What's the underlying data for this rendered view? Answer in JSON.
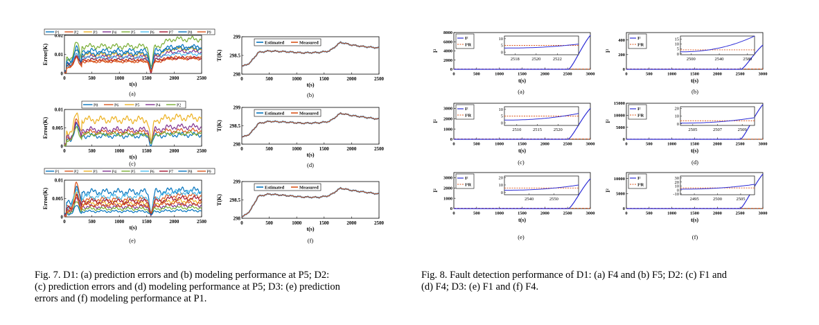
{
  "fig7": {
    "caption_lines": [
      "Fig. 7.  D1: (a) prediction errors and (b) modeling performance at P5; D2:",
      "(c) prediction errors and (d) modeling performance at P5; D3: (e) prediction",
      "errors and (f) modeling performance at P1."
    ],
    "panels": [
      {
        "letter": "(a)",
        "xlabel": "t(s)",
        "ylabel": "Error(K)"
      },
      {
        "letter": "(b)",
        "xlabel": "t(s)",
        "ylabel": "T(K)"
      },
      {
        "letter": "(c)",
        "xlabel": "t(s)",
        "ylabel": "Error(K)"
      },
      {
        "letter": "(d)",
        "xlabel": "t(s)",
        "ylabel": "T(K)"
      },
      {
        "letter": "(e)",
        "xlabel": "t(s)",
        "ylabel": "Error(K)"
      },
      {
        "letter": "(f)",
        "xlabel": "t(s)",
        "ylabel": "T(K)"
      }
    ]
  },
  "fig8": {
    "caption_lines": [
      "Fig. 8.  Fault detection performance of D1: (a) F4 and (b) F5; D2: (c) F1 and",
      "(d) F4; D3: (e) F1 and (f) F4."
    ],
    "panels": [
      {
        "letter": "(a)",
        "xlabel": "t(s)",
        "ylabel": "I²"
      },
      {
        "letter": "(b)",
        "xlabel": "t(s)",
        "ylabel": "I²"
      },
      {
        "letter": "(c)",
        "xlabel": "t(s)",
        "ylabel": "I²"
      },
      {
        "letter": "(d)",
        "xlabel": "t(s)",
        "ylabel": "I²"
      },
      {
        "letter": "(e)",
        "xlabel": "t(s)",
        "ylabel": "I²"
      },
      {
        "letter": "(f)",
        "xlabel": "t(s)",
        "ylabel": "I²"
      }
    ],
    "legend": [
      "I²",
      "I²R"
    ]
  },
  "colors": {
    "blue": "#0072BD",
    "red": "#D95319",
    "yellow": "#EDB120",
    "purple": "#7E2F8E",
    "green": "#77AC30",
    "cyan": "#4DBEEE",
    "darkred": "#A2142F",
    "fig8_stat": "#2b2bd6",
    "fig8_limit": "#D95319"
  },
  "chart_data": [
    {
      "id": "fig7a",
      "type": "line",
      "ylabel": "Error(K)",
      "xlabel": "t(s)",
      "xlim": [
        0,
        2500
      ],
      "ylim": [
        0,
        0.02
      ],
      "xticks": [
        "0",
        "500",
        "1000",
        "1500",
        "2000",
        "2500"
      ],
      "yticks": [
        "0",
        "0.01",
        "0.02"
      ],
      "legend": [
        "P1",
        "P2",
        "P3",
        "P4",
        "P5",
        "P6",
        "P7",
        "P8",
        "P9"
      ],
      "legend_placement": "top",
      "series": [
        {
          "name": "P1",
          "color": "#0072BD",
          "base": 0.0118,
          "amp": 0.0012,
          "peak": 0.014,
          "dip": 0.002,
          "late": 0.002,
          "ph": 0.3
        },
        {
          "name": "P2",
          "color": "#D95319",
          "base": 0.0062,
          "amp": 0.0006,
          "peak": 0.009,
          "dip": 0.001,
          "late": 0.0015,
          "ph": 1.1
        },
        {
          "name": "P3",
          "color": "#EDB120",
          "base": 0.0098,
          "amp": 0.001,
          "peak": 0.012,
          "dip": 0.002,
          "late": 0.003,
          "ph": 2.1
        },
        {
          "name": "P4",
          "color": "#7E2F8E",
          "base": 0.0088,
          "amp": 0.0009,
          "peak": 0.01,
          "dip": 0.002,
          "late": 0.0025,
          "ph": 0.7
        },
        {
          "name": "P5",
          "color": "#77AC30",
          "base": 0.0142,
          "amp": 0.0013,
          "peak": 0.016,
          "dip": 0.003,
          "late": 0.0038,
          "ph": 1.6
        },
        {
          "name": "P6",
          "color": "#4DBEEE",
          "base": 0.0082,
          "amp": 0.0008,
          "peak": 0.01,
          "dip": 0.001,
          "late": 0.002,
          "ph": 2.7
        },
        {
          "name": "P7",
          "color": "#A2142F",
          "base": 0.0072,
          "amp": 0.0007,
          "peak": 0.009,
          "dip": 0.001,
          "late": 0.001,
          "ph": 0.2
        },
        {
          "name": "P8",
          "color": "#0072BD",
          "base": 0.0105,
          "amp": 0.001,
          "peak": 0.012,
          "dip": 0.002,
          "late": 0.0028,
          "ph": 1.9
        },
        {
          "name": "P9",
          "color": "#D95319",
          "base": 0.0066,
          "amp": 0.0007,
          "peak": 0.008,
          "dip": 0.001,
          "late": 0.0018,
          "ph": 3.0
        }
      ]
    },
    {
      "id": "fig7b",
      "type": "line",
      "ylabel": "T(K)",
      "xlabel": "t(s)",
      "xlim": [
        0,
        2500
      ],
      "ylim": [
        298,
        299
      ],
      "xticks": [
        "0",
        "500",
        "1000",
        "1500",
        "2000",
        "2500"
      ],
      "yticks": [
        "298",
        "298.5",
        "299"
      ],
      "legend": [
        "Estimated",
        "Measured"
      ],
      "legend_placement": "top-left",
      "x": [
        0,
        150,
        300,
        500,
        800,
        1100,
        1400,
        1600,
        1800,
        2000,
        2200,
        2500
      ],
      "series": [
        {
          "name": "Estimated",
          "color": "#0072BD",
          "values": [
            298.2,
            298.3,
            298.58,
            298.62,
            298.6,
            298.57,
            298.58,
            298.62,
            298.85,
            298.78,
            298.74,
            298.7
          ]
        },
        {
          "name": "Measured",
          "color": "#D95319",
          "values": [
            298.2,
            298.3,
            298.58,
            298.62,
            298.6,
            298.57,
            298.58,
            298.62,
            298.85,
            298.78,
            298.74,
            298.7
          ]
        }
      ]
    },
    {
      "id": "fig7c",
      "type": "line",
      "ylabel": "Error(K)",
      "xlabel": "t(s)",
      "xlim": [
        0,
        2500
      ],
      "ylim": [
        0,
        0.01
      ],
      "xticks": [
        "0",
        "500",
        "1000",
        "1500",
        "2000",
        "2500"
      ],
      "yticks": [
        "0",
        "0.005",
        "0.01"
      ],
      "legend": [
        "P8",
        "P6",
        "P5",
        "P4",
        "P2"
      ],
      "legend_placement": "top",
      "series": [
        {
          "name": "P8",
          "color": "#0072BD",
          "base": 0.0028,
          "amp": 0.0006,
          "peak": 0.006,
          "dip": 0.0005,
          "late": 0.0003,
          "ph": 0.4
        },
        {
          "name": "P6",
          "color": "#D95319",
          "base": 0.0038,
          "amp": 0.0006,
          "peak": 0.0072,
          "dip": 0.0008,
          "late": 0.0004,
          "ph": 1.2
        },
        {
          "name": "P5",
          "color": "#EDB120",
          "base": 0.0072,
          "amp": 0.0009,
          "peak": 0.0085,
          "dip": 0.0012,
          "late": 0.0006,
          "ph": 2.3
        },
        {
          "name": "P4",
          "color": "#7E2F8E",
          "base": 0.0045,
          "amp": 0.0007,
          "peak": 0.0062,
          "dip": 0.001,
          "late": 0.0008,
          "ph": 0.9
        },
        {
          "name": "P2",
          "color": "#77AC30",
          "base": 0.0033,
          "amp": 0.0005,
          "peak": 0.005,
          "dip": 0.0006,
          "late": 0.0002,
          "ph": 2.8
        }
      ]
    },
    {
      "id": "fig7d",
      "type": "line",
      "ylabel": "T(K)",
      "xlabel": "t(s)",
      "xlim": [
        0,
        2500
      ],
      "ylim": [
        298,
        299
      ],
      "xticks": [
        "0",
        "500",
        "1000",
        "1500",
        "2000",
        "2500"
      ],
      "yticks": [
        "298",
        "298.5",
        "299"
      ],
      "legend": [
        "Estimated",
        "Measured"
      ],
      "legend_placement": "top-left",
      "x": [
        0,
        150,
        300,
        500,
        800,
        1100,
        1400,
        1600,
        1800,
        2000,
        2200,
        2500
      ],
      "series": [
        {
          "name": "Estimated",
          "color": "#0072BD",
          "values": [
            298.18,
            298.28,
            298.56,
            298.62,
            298.6,
            298.57,
            298.58,
            298.62,
            298.84,
            298.78,
            298.74,
            298.68
          ]
        },
        {
          "name": "Measured",
          "color": "#D95319",
          "values": [
            298.18,
            298.28,
            298.56,
            298.62,
            298.6,
            298.57,
            298.58,
            298.62,
            298.84,
            298.78,
            298.74,
            298.68
          ]
        }
      ]
    },
    {
      "id": "fig7e",
      "type": "line",
      "ylabel": "Error(K)",
      "xlabel": "t(s)",
      "xlim": [
        0,
        2500
      ],
      "ylim": [
        0,
        0.01
      ],
      "xticks": [
        "0",
        "500",
        "1000",
        "1500",
        "2000",
        "2500"
      ],
      "yticks": [
        "0",
        "0.005",
        "0.01"
      ],
      "legend": [
        "P1",
        "P2",
        "P3",
        "P4",
        "P5",
        "P6",
        "P7",
        "P8",
        "P9"
      ],
      "legend_placement": "top",
      "series": [
        {
          "name": "P1",
          "color": "#0072BD",
          "base": 0.0068,
          "amp": 0.0008,
          "peak": 0.008,
          "dip": 0.001,
          "late": 0.0004,
          "ph": 0.3
        },
        {
          "name": "P2",
          "color": "#D95319",
          "base": 0.0048,
          "amp": 0.0006,
          "peak": 0.0092,
          "dip": 0.001,
          "late": 0.001,
          "ph": 1.1
        },
        {
          "name": "P3",
          "color": "#EDB120",
          "base": 0.0038,
          "amp": 0.0006,
          "peak": 0.0065,
          "dip": 0.001,
          "late": 0.0006,
          "ph": 2.1
        },
        {
          "name": "P4",
          "color": "#7E2F8E",
          "base": 0.0028,
          "amp": 0.0005,
          "peak": 0.005,
          "dip": 0.001,
          "late": 0.0004,
          "ph": 0.7
        },
        {
          "name": "P5",
          "color": "#77AC30",
          "base": 0.0022,
          "amp": 0.0004,
          "peak": 0.004,
          "dip": 0.0008,
          "late": 0.0003,
          "ph": 1.6
        },
        {
          "name": "P6",
          "color": "#4DBEEE",
          "base": 0.0055,
          "amp": 0.0007,
          "peak": 0.007,
          "dip": 0.001,
          "late": 0.0012,
          "ph": 2.7
        },
        {
          "name": "P7",
          "color": "#A2142F",
          "base": 0.0042,
          "amp": 0.0006,
          "peak": 0.006,
          "dip": 0.001,
          "late": 0.0008,
          "ph": 0.2
        },
        {
          "name": "P8",
          "color": "#0072BD",
          "base": 0.0015,
          "amp": 0.0003,
          "peak": 0.003,
          "dip": 0.0005,
          "late": 0.0002,
          "ph": 1.9
        },
        {
          "name": "P9",
          "color": "#D95319",
          "base": 0.0032,
          "amp": 0.0005,
          "peak": 0.0055,
          "dip": 0.001,
          "late": 0.0005,
          "ph": 3.0
        }
      ]
    },
    {
      "id": "fig7f",
      "type": "line",
      "ylabel": "T(K)",
      "xlabel": "t(s)",
      "xlim": [
        0,
        2500
      ],
      "ylim": [
        298,
        299
      ],
      "xticks": [
        "0",
        "500",
        "1000",
        "1500",
        "2000",
        "2500"
      ],
      "yticks": [
        "298",
        "298.5",
        "299"
      ],
      "legend": [
        "Estimated",
        "Measured"
      ],
      "legend_placement": "top-left",
      "x": [
        0,
        150,
        300,
        500,
        800,
        1100,
        1400,
        1600,
        1800,
        2000,
        2200,
        2500
      ],
      "series": [
        {
          "name": "Estimated",
          "color": "#0072BD",
          "values": [
            298.02,
            298.2,
            298.6,
            298.66,
            298.62,
            298.58,
            298.57,
            298.62,
            298.82,
            298.76,
            298.72,
            298.66
          ]
        },
        {
          "name": "Measured",
          "color": "#D95319",
          "values": [
            298.02,
            298.2,
            298.6,
            298.66,
            298.62,
            298.58,
            298.57,
            298.62,
            298.82,
            298.76,
            298.72,
            298.66
          ]
        }
      ]
    },
    {
      "id": "fig8a",
      "type": "line",
      "ylabel": "I²",
      "xlabel": "t(s)",
      "xlim": [
        0,
        3000
      ],
      "ylim": [
        0,
        8000
      ],
      "xticks": [
        "0",
        "500",
        "1000",
        "1500",
        "2000",
        "2500",
        "3000"
      ],
      "yticks": [
        "0",
        "2000",
        "4000",
        "6000",
        "8000"
      ],
      "legend": [
        "I²",
        "I²R"
      ],
      "legend_placement": "top-left",
      "fault_time": 2520,
      "curve_end": 7400,
      "threshold": 60,
      "inset": {
        "xlim": [
          2517,
          2524
        ],
        "xticks": [
          "2518",
          "2520",
          "2522"
        ],
        "ylim": [
          -2,
          12
        ],
        "yticks": [
          "0",
          "5",
          "10"
        ],
        "thr": 5,
        "start": 3,
        "end": 6
      }
    },
    {
      "id": "fig8b",
      "type": "line",
      "ylabel": "I²",
      "xlabel": "t(s)",
      "xlim": [
        0,
        3000
      ],
      "ylim": [
        0,
        500
      ],
      "xticks": [
        "0",
        "500",
        "1000",
        "1500",
        "2000",
        "2500",
        "3000"
      ],
      "yticks": [
        "0",
        "200",
        "400"
      ],
      "legend": [
        "I²",
        "I²R"
      ],
      "legend_placement": "top-left",
      "fault_time": 2520,
      "curve_end": 330,
      "threshold": 5,
      "inset": {
        "xlim": [
          2485,
          2590
        ],
        "xticks": [
          "2500",
          "2540",
          "2580"
        ],
        "ylim": [
          -1,
          18
        ],
        "yticks": [
          "0",
          "5",
          "10",
          "15"
        ],
        "thr": 4,
        "start": 2,
        "end": 18
      }
    },
    {
      "id": "fig8c",
      "type": "line",
      "ylabel": "I²",
      "xlabel": "t(s)",
      "xlim": [
        0,
        3000
      ],
      "ylim": [
        0,
        3500
      ],
      "xticks": [
        "0",
        "500",
        "1000",
        "1500",
        "2000",
        "2500",
        "3000"
      ],
      "yticks": [
        "0",
        "1000",
        "2000",
        "3000"
      ],
      "legend": [
        "I²",
        "I²R"
      ],
      "legend_placement": "top-left",
      "fault_time": 2510,
      "curve_end": 3000,
      "threshold": 30,
      "inset": {
        "xlim": [
          2507,
          2525
        ],
        "xticks": [
          "2510",
          "2515",
          "2520"
        ],
        "ylim": [
          -2,
          12
        ],
        "yticks": [
          "0",
          "5",
          "10"
        ],
        "thr": 5,
        "start": 2,
        "end": 7
      }
    },
    {
      "id": "fig8d",
      "type": "line",
      "ylabel": "I²",
      "xlabel": "t(s)",
      "xlim": [
        0,
        3000
      ],
      "ylim": [
        0,
        15000
      ],
      "xticks": [
        "0",
        "500",
        "1000",
        "1500",
        "2000",
        "2500",
        "3000"
      ],
      "yticks": [
        "0",
        "5000",
        "10000",
        "15000"
      ],
      "legend": [
        "I²",
        "I²R"
      ],
      "legend_placement": "top-left",
      "fault_time": 2505,
      "curve_end": 14500,
      "threshold": 80,
      "inset": {
        "xlim": [
          2504,
          2510
        ],
        "xticks": [
          "2505",
          "2507",
          "2509"
        ],
        "ylim": [
          -2,
          22
        ],
        "yticks": [
          "0",
          "10",
          "20"
        ],
        "thr": 4,
        "start": 1,
        "end": 8
      }
    },
    {
      "id": "fig8e",
      "type": "line",
      "ylabel": "I²",
      "xlabel": "t(s)",
      "xlim": [
        0,
        3000
      ],
      "ylim": [
        0,
        3500
      ],
      "xticks": [
        "0",
        "500",
        "1000",
        "1500",
        "2000",
        "2500",
        "3000"
      ],
      "yticks": [
        "0",
        "1000",
        "2000",
        "3000"
      ],
      "legend": [
        "I²",
        "I²R"
      ],
      "legend_placement": "top-left",
      "fault_time": 2520,
      "curve_end": 2900,
      "threshold": 30,
      "inset": {
        "xlim": [
          2530,
          2560
        ],
        "xticks": [
          "2540",
          "2550"
        ],
        "ylim": [
          -3,
          22
        ],
        "yticks": [
          "0",
          "10",
          "20"
        ],
        "thr": 6,
        "start": 3,
        "end": 10
      }
    },
    {
      "id": "fig8f",
      "type": "line",
      "ylabel": "I²",
      "xlabel": "t(s)",
      "xlim": [
        0,
        3000
      ],
      "ylim": [
        0,
        12000
      ],
      "xticks": [
        "0",
        "500",
        "1000",
        "1500",
        "2000",
        "2500",
        "3000"
      ],
      "yticks": [
        "0",
        "5000",
        "10000"
      ],
      "legend": [
        "I²",
        "I²R"
      ],
      "legend_placement": "top-left",
      "fault_time": 2500,
      "curve_end": 11500,
      "threshold": 80,
      "inset": {
        "xlim": [
          2492,
          2508
        ],
        "xticks": [
          "2495",
          "2500",
          "2505"
        ],
        "ylim": [
          -12,
          35
        ],
        "yticks": [
          "-10",
          "0",
          "10",
          "20",
          "30"
        ],
        "thr": 5,
        "start": 2,
        "end": 14
      }
    }
  ]
}
